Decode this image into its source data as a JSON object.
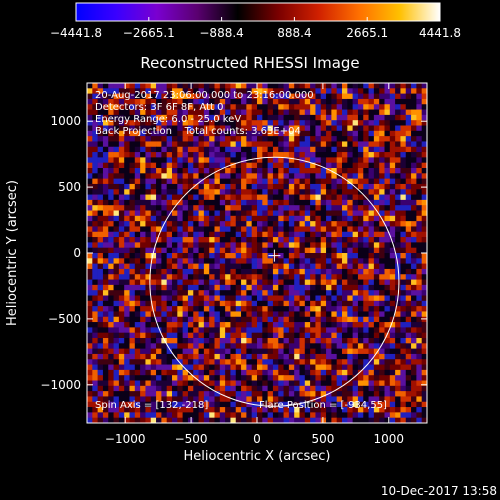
{
  "chart_data": {
    "type": "heatmap",
    "title": "Reconstructed RHESSI Image",
    "xlabel": "Heliocentric X (arcsec)",
    "ylabel": "Heliocentric Y (arcsec)",
    "xlim": [
      -1290,
      1290
    ],
    "ylim": [
      -1290,
      1290
    ],
    "xticks": [
      -1000,
      -500,
      0,
      500,
      1000
    ],
    "yticks": [
      -1000,
      -500,
      0,
      500,
      1000
    ],
    "xtick_labels": [
      "−1000",
      "−500",
      "0",
      "500",
      "1000"
    ],
    "ytick_labels": [
      "−1000",
      "−500",
      "0",
      "500",
      "1000"
    ],
    "colorbar": {
      "min": -4441.8,
      "max": 4441.8,
      "tick_values": [
        -4441.8,
        -2665.1,
        -888.4,
        888.4,
        2665.1,
        4441.8
      ],
      "tick_labels": [
        "−4441.8",
        "−2665.1",
        "−888.4",
        "888.4",
        "2665.1",
        "4441.8"
      ],
      "colors": [
        "#0000ff",
        "#3a00ff",
        "#7a00d0",
        "#5a0070",
        "#000000",
        "#7a0000",
        "#d02000",
        "#ff7000",
        "#ffc000",
        "#ffffff"
      ]
    },
    "solar_limb": {
      "center": [
        132,
        -218
      ],
      "radius": 945,
      "color": "#ffffff"
    },
    "center_marker": [
      132,
      -218
    ],
    "grid": false,
    "annotations": [
      "20-Aug-2017 23:06:00.000 to 23:16:00.000",
      "Detectors: 3F 6F 8F, Att 0",
      "Energy Range: 6.0 - 25.0 keV",
      "Back Projection    Total counts: 3.63E+04"
    ],
    "spin_axis": "Spin Axis = [132,-218]",
    "flare_position": "Flare Position = [-934,55]"
  },
  "footer": {
    "timestamp": "10-Dec-2017 13:58"
  }
}
